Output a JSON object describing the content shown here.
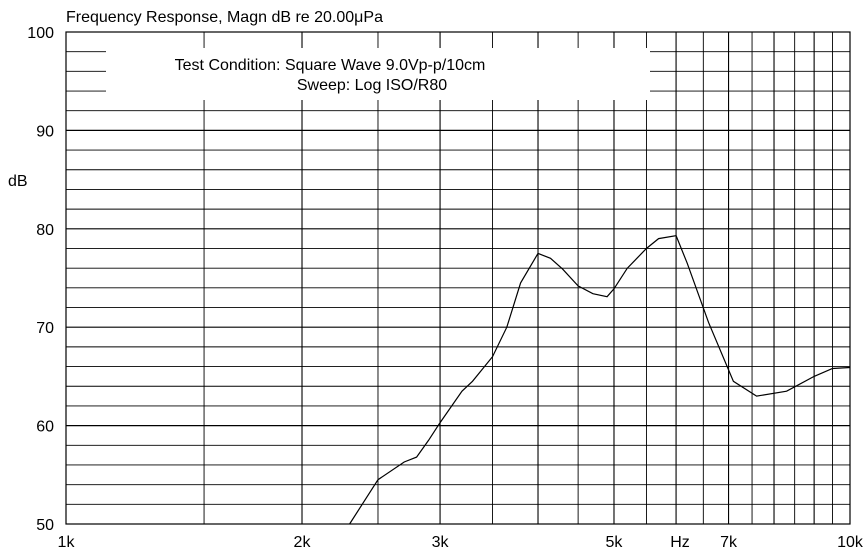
{
  "chart_data": {
    "type": "line",
    "title": "Frequency Response, Magn dB re 20.00μPa",
    "annotation_lines": [
      "Test Condition: Square Wave 9.0Vp-p/10cm",
      "Sweep: Log ISO/R80"
    ],
    "ylabel": "dB",
    "xlabel": "Hz",
    "x_scale": "log",
    "xlim": [
      1000,
      10000
    ],
    "ylim": [
      50,
      100
    ],
    "grid": true,
    "y_ticks": [
      {
        "value": 50,
        "label": "50"
      },
      {
        "value": 60,
        "label": "60"
      },
      {
        "value": 70,
        "label": "70"
      },
      {
        "value": 80,
        "label": "80"
      },
      {
        "value": 90,
        "label": "90"
      },
      {
        "value": 100,
        "label": "100"
      }
    ],
    "x_ticks": [
      {
        "value": 1000,
        "label": "1k"
      },
      {
        "value": 2000,
        "label": "2k"
      },
      {
        "value": 3000,
        "label": "3k"
      },
      {
        "value": 5000,
        "label": "5k"
      },
      {
        "value": 7000,
        "label": "7k"
      },
      {
        "value": 10000,
        "label": "10k"
      }
    ],
    "series": [
      {
        "x": [
          2300,
          2500,
          2700,
          2800,
          2900,
          3000,
          3200,
          3300,
          3500,
          3650,
          3800,
          4000,
          4150,
          4300,
          4500,
          4700,
          4900,
          5000,
          5200,
          5500,
          5700,
          6000,
          6200,
          6600,
          7100,
          7600,
          8300,
          9000,
          9500,
          10000
        ],
        "y": [
          50.0,
          54.5,
          56.3,
          56.8,
          58.5,
          60.3,
          63.5,
          64.5,
          67.0,
          70.0,
          74.5,
          77.5,
          77.0,
          75.9,
          74.2,
          73.4,
          73.1,
          73.9,
          76.0,
          78.0,
          79.0,
          79.3,
          76.5,
          70.5,
          64.5,
          63.0,
          63.5,
          65.0,
          65.8,
          65.9
        ]
      }
    ]
  }
}
